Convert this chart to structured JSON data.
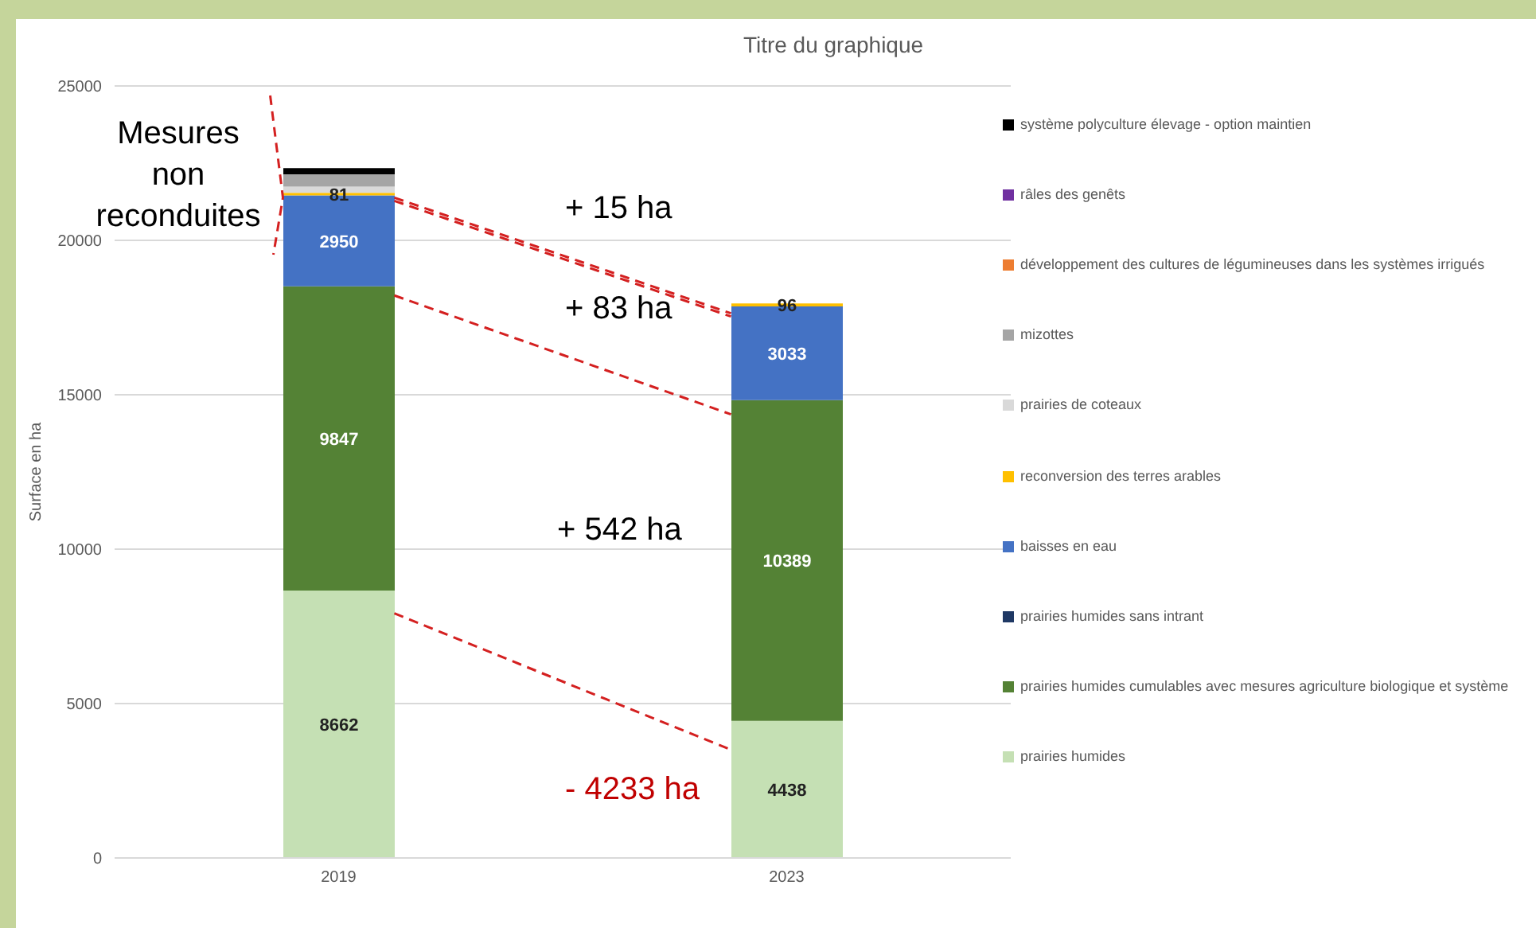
{
  "chart_data": {
    "type": "bar",
    "stacked": true,
    "title": "Titre du graphique",
    "ylabel": "Surface en ha",
    "categories": [
      "2019",
      "2023"
    ],
    "ylim": [
      0,
      25000
    ],
    "yticks": [
      0,
      5000,
      10000,
      15000,
      20000,
      25000
    ],
    "grid": "y",
    "legend": "right",
    "annotations": [
      "Mesures non reconduites",
      "+ 15 ha",
      "+ 83 ha",
      "+ 542 ha",
      "- 4233 ha"
    ],
    "series": [
      {
        "name": "prairies humides",
        "color": "#c5e0b4",
        "values": [
          8662,
          4438
        ],
        "value_labels": [
          "8662",
          "4438"
        ]
      },
      {
        "name": "prairies humides cumulables avec mesures agriculture biologique et système",
        "color": "#548235",
        "values": [
          9847,
          10389
        ],
        "value_labels": [
          "9847",
          "10389"
        ]
      },
      {
        "name": "prairies humides sans intrant",
        "color": "#1f3864",
        "values": [
          0,
          0
        ]
      },
      {
        "name": "baisses en eau",
        "color": "#4472c4",
        "values": [
          2950,
          3033
        ],
        "value_labels": [
          "2950",
          "3033"
        ]
      },
      {
        "name": "reconversion des terres arables",
        "color": "#ffc000",
        "values": [
          81,
          96
        ],
        "value_labels": [
          "81",
          "96"
        ]
      },
      {
        "name": "prairies de coteaux",
        "color": "#d9d9d9",
        "values": [
          200,
          0
        ]
      },
      {
        "name": "mizottes",
        "color": "#a5a5a5",
        "values": [
          400,
          0
        ]
      },
      {
        "name": "développement des cultures de légumineuses dans les systèmes irrigués",
        "color": "#ed7d31",
        "values": [
          0,
          0
        ]
      },
      {
        "name": "râles des genêts",
        "color": "#7030a0",
        "values": [
          0,
          0
        ]
      },
      {
        "name": "système polyculture élevage - option maintien",
        "color": "#000000",
        "values": [
          200,
          0
        ]
      }
    ]
  }
}
